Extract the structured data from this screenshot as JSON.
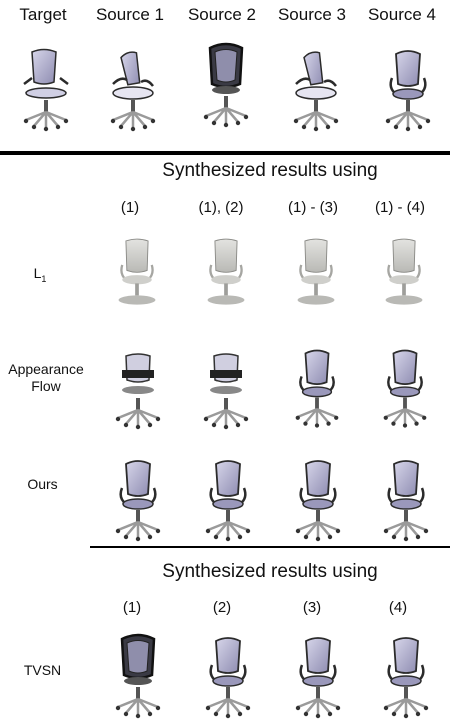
{
  "top_headers": [
    "Target",
    "Source 1",
    "Source 2",
    "Source 3",
    "Source 4"
  ],
  "section1": {
    "title": "Synthesized results using",
    "column_headers": [
      "(1)",
      "(1), (2)",
      "(1) - (3)",
      "(1) - (4)"
    ],
    "rows": [
      {
        "label_line1": "L",
        "label_sub": "1",
        "label_line2": ""
      },
      {
        "label_line1": "Appearance",
        "label_sub": "",
        "label_line2": "Flow"
      },
      {
        "label_line1": "Ours",
        "label_sub": "",
        "label_line2": ""
      }
    ]
  },
  "section2": {
    "title": "Synthesized results using",
    "column_headers": [
      "(1)",
      "(2)",
      "(3)",
      "(4)"
    ],
    "rows": [
      {
        "label_line1": "TVSN",
        "label_sub": "",
        "label_line2": ""
      }
    ]
  },
  "colors": {
    "chair_seat": "#a9a7c6",
    "chair_frame": "#2b2b2b",
    "chair_base": "#b7b7b7"
  }
}
